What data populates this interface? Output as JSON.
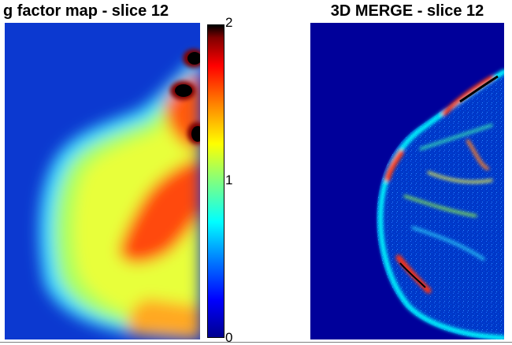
{
  "left_panel": {
    "title": "g factor map - slice 12"
  },
  "right_panel": {
    "title": "3D MERGE - slice 12"
  },
  "colorbar": {
    "ticks": [
      "2",
      "1",
      "0"
    ],
    "min": 0,
    "max": 2,
    "colormap": "jet"
  },
  "colors": {
    "background": "#00008f",
    "accent_high": "#ff0000",
    "accent_mid": "#ffff00"
  }
}
